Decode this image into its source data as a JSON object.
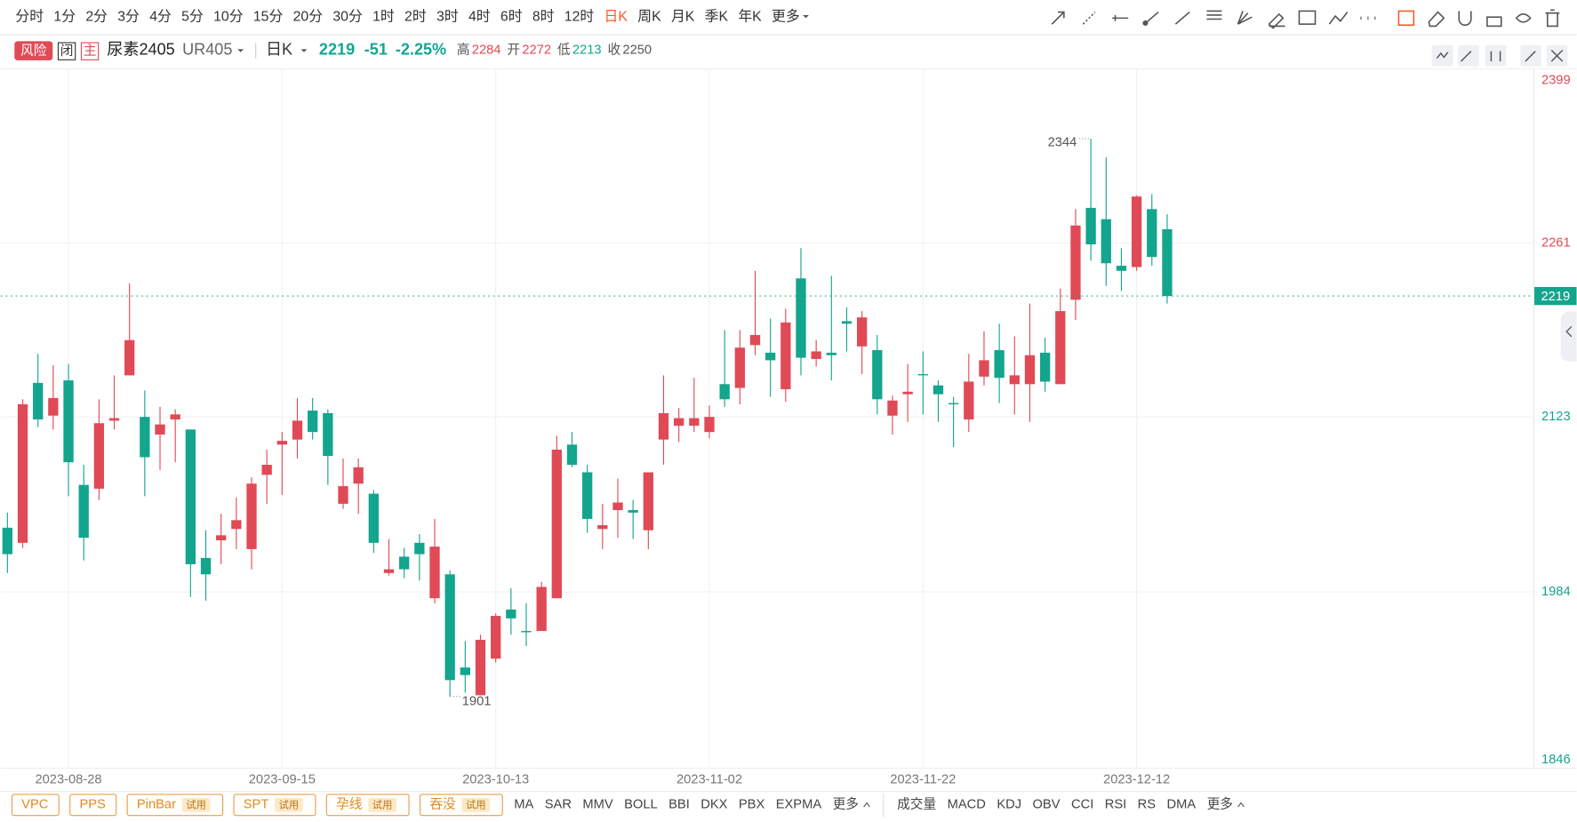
{
  "periods": {
    "items": [
      "分时",
      "1分",
      "2分",
      "3分",
      "4分",
      "5分",
      "10分",
      "15分",
      "20分",
      "30分",
      "1时",
      "2时",
      "3时",
      "4时",
      "6时",
      "8时",
      "12时",
      "日K",
      "周K",
      "月K",
      "季K",
      "年K",
      "更多"
    ],
    "active": 17
  },
  "header": {
    "badges": [
      "风险",
      "闭",
      "主"
    ],
    "name": "尿素2405",
    "code": "UR405",
    "period": "日K",
    "price": "2219",
    "change": "-51",
    "change_pct": "-2.25%",
    "high_label": "高",
    "high": "2284",
    "open_label": "开",
    "open": "2272",
    "low_label": "低",
    "low": "2213",
    "close_label": "收",
    "prev_close": "2250"
  },
  "chart_data": {
    "type": "candlestick",
    "categories": [
      null,
      null,
      null,
      null,
      "2023-08-28",
      null,
      null,
      null,
      null,
      null,
      null,
      null,
      null,
      null,
      null,
      null,
      null,
      null,
      "2023-09-15",
      null,
      null,
      null,
      null,
      null,
      null,
      null,
      null,
      null,
      null,
      null,
      null,
      null,
      "2023-10-13",
      null,
      null,
      null,
      null,
      null,
      null,
      null,
      null,
      null,
      null,
      null,
      null,
      null,
      "2023-11-02",
      null,
      null,
      null,
      null,
      null,
      null,
      null,
      null,
      null,
      null,
      null,
      null,
      null,
      "2023-11-22",
      null,
      null,
      null,
      null,
      null,
      null,
      null,
      null,
      null,
      null,
      null,
      null,
      null,
      "2023-12-12",
      null,
      null
    ],
    "open": [
      2035,
      2023,
      2150,
      2124,
      2152,
      2069,
      2066,
      2120,
      2156,
      2123,
      2109,
      2121,
      2113,
      2011,
      2025,
      2034,
      2018,
      2077,
      2101,
      2105,
      2128,
      2126,
      2054,
      2070,
      2062,
      1999,
      2012,
      2023,
      1979,
      1998,
      1924,
      1902,
      1931,
      1970,
      1953,
      1953,
      1979,
      2101,
      2079,
      2034,
      2049,
      2049,
      2033,
      2105,
      2116,
      2116,
      2111,
      2149,
      2146,
      2180,
      2174,
      2145,
      2233,
      2169,
      2174,
      2199,
      2179,
      2176,
      2124,
      2141,
      2157,
      2148,
      2134,
      2121,
      2155,
      2176,
      2149,
      2149,
      2174,
      2149,
      2216,
      2289,
      2280,
      2243,
      2242,
      2288,
      2272
    ],
    "high": [
      2047,
      2137,
      2173,
      2164,
      2165,
      2085,
      2137,
      2156,
      2229,
      2144,
      2131,
      2129,
      2113,
      2033,
      2046,
      2059,
      2075,
      2097,
      2111,
      2138,
      2138,
      2129,
      2090,
      2090,
      2065,
      2026,
      2019,
      2030,
      2042,
      2001,
      1945,
      1950,
      1967,
      1987,
      1975,
      1992,
      2108,
      2111,
      2085,
      2054,
      2074,
      2057,
      2079,
      2156,
      2130,
      2154,
      2132,
      2192,
      2192,
      2239,
      2201,
      2209,
      2257,
      2184,
      2235,
      2210,
      2207,
      2188,
      2140,
      2165,
      2175,
      2152,
      2139,
      2173,
      2191,
      2197,
      2187,
      2213,
      2186,
      2225,
      2288,
      2344,
      2329,
      2257,
      2299,
      2300,
      2284
    ],
    "low": [
      1999,
      2019,
      2115,
      2113,
      2060,
      2009,
      2057,
      2113,
      2156,
      2060,
      2081,
      2087,
      1980,
      1977,
      2006,
      2018,
      2002,
      2054,
      2061,
      2090,
      2105,
      2069,
      2050,
      2046,
      2015,
      1997,
      1995,
      1993,
      1975,
      1901,
      1904,
      1902,
      1928,
      1950,
      1941,
      1953,
      1979,
      2083,
      2031,
      2018,
      2027,
      2026,
      2018,
      2085,
      2103,
      2111,
      2106,
      2131,
      2133,
      2172,
      2139,
      2135,
      2156,
      2163,
      2152,
      2175,
      2157,
      2125,
      2109,
      2119,
      2125,
      2119,
      2099,
      2111,
      2148,
      2134,
      2125,
      2119,
      2143,
      2149,
      2200,
      2247,
      2227,
      2223,
      2239,
      2243,
      2213
    ],
    "close": [
      2014,
      2133,
      2121,
      2138,
      2087,
      2027,
      2118,
      2122,
      2184,
      2091,
      2117,
      2125,
      2006,
      1998,
      2029,
      2041,
      2070,
      2085,
      2104,
      2120,
      2111,
      2092,
      2068,
      2083,
      2023,
      2002,
      2002,
      2014,
      2020,
      1914,
      1918,
      1946,
      1965,
      1963,
      1952,
      1988,
      2097,
      2085,
      2042,
      2037,
      2055,
      2047,
      2079,
      2126,
      2122,
      2122,
      2123,
      2137,
      2178,
      2188,
      2168,
      2198,
      2170,
      2175,
      2172,
      2197,
      2202,
      2137,
      2136,
      2143,
      2156,
      2141,
      2133,
      2151,
      2168,
      2154,
      2156,
      2172,
      2151,
      2207,
      2275,
      2260,
      2245,
      2239,
      2298,
      2250,
      2219
    ],
    "up_color": "#e04a56",
    "down_color": "#13a58e",
    "ylim": [
      1846,
      2399
    ],
    "yticks": [
      2399,
      2261,
      2123,
      1984,
      1846
    ],
    "grid": true
  },
  "patterns": [
    {
      "label": "VPC"
    },
    {
      "label": "PPS"
    },
    {
      "label": "PinBar",
      "tag": "试用"
    },
    {
      "label": "SPT",
      "tag": "试用"
    },
    {
      "label": "孕线",
      "tag": "试用"
    },
    {
      "label": "吞没",
      "tag": "试用"
    }
  ],
  "main_indicators": [
    "MA",
    "SAR",
    "MMV",
    "BOLL",
    "BBI",
    "DKX",
    "PBX",
    "EXPMA",
    "更多"
  ],
  "sub_indicators": [
    "成交量",
    "MACD",
    "KDJ",
    "OBV",
    "CCI",
    "RSI",
    "RS",
    "DMA",
    "更多"
  ]
}
